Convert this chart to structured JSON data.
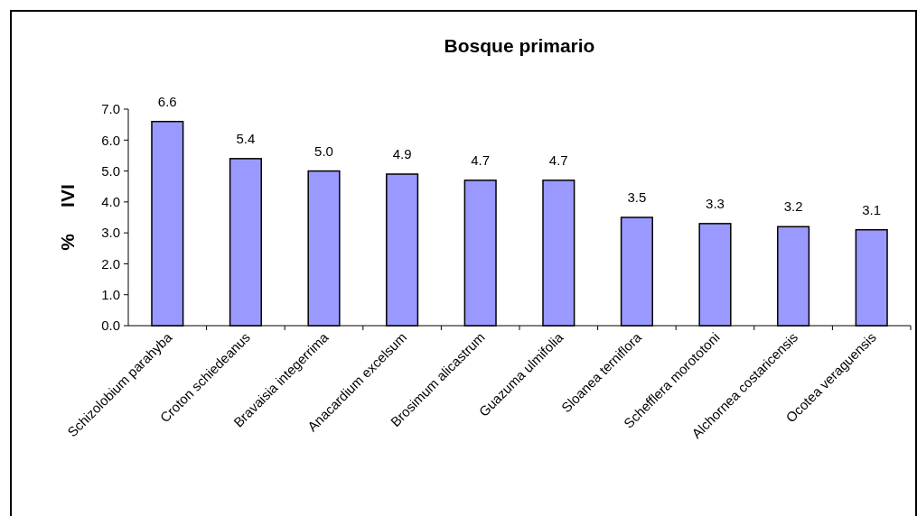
{
  "chart_data": {
    "type": "bar",
    "title": "Bosque primario",
    "ylabel": "%     IVI",
    "categories": [
      "Schizolobium parahyba",
      "Croton schiedeanus",
      "Bravaisia integerrima",
      "Anacardium excelsum",
      "Brosimum alicastrum",
      "Guazuma ulmifolia",
      "Sloanea terniflora",
      "Schefflera morototoni",
      "Alchornea costaricensis",
      "Ocotea veraguensis"
    ],
    "values": [
      6.6,
      5.4,
      5.0,
      4.9,
      4.7,
      4.7,
      3.5,
      3.3,
      3.2,
      3.1
    ],
    "color": "#9999ff",
    "ylim": [
      0,
      7
    ],
    "yticks": [
      {
        "value": 0,
        "label": "0.0"
      },
      {
        "value": 1,
        "label": "1.0"
      },
      {
        "value": 2,
        "label": "2.0"
      },
      {
        "value": 3,
        "label": "3.0"
      },
      {
        "value": 4,
        "label": "4.0"
      },
      {
        "value": 5,
        "label": "5.0"
      },
      {
        "value": 6,
        "label": "6.0"
      },
      {
        "value": 7,
        "label": "7.0"
      }
    ],
    "value_labels": [
      "6.6",
      "5.4",
      "5.0",
      "4.9",
      "4.7",
      "4.7",
      "3.5",
      "3.3",
      "3.2",
      "3.1"
    ]
  }
}
